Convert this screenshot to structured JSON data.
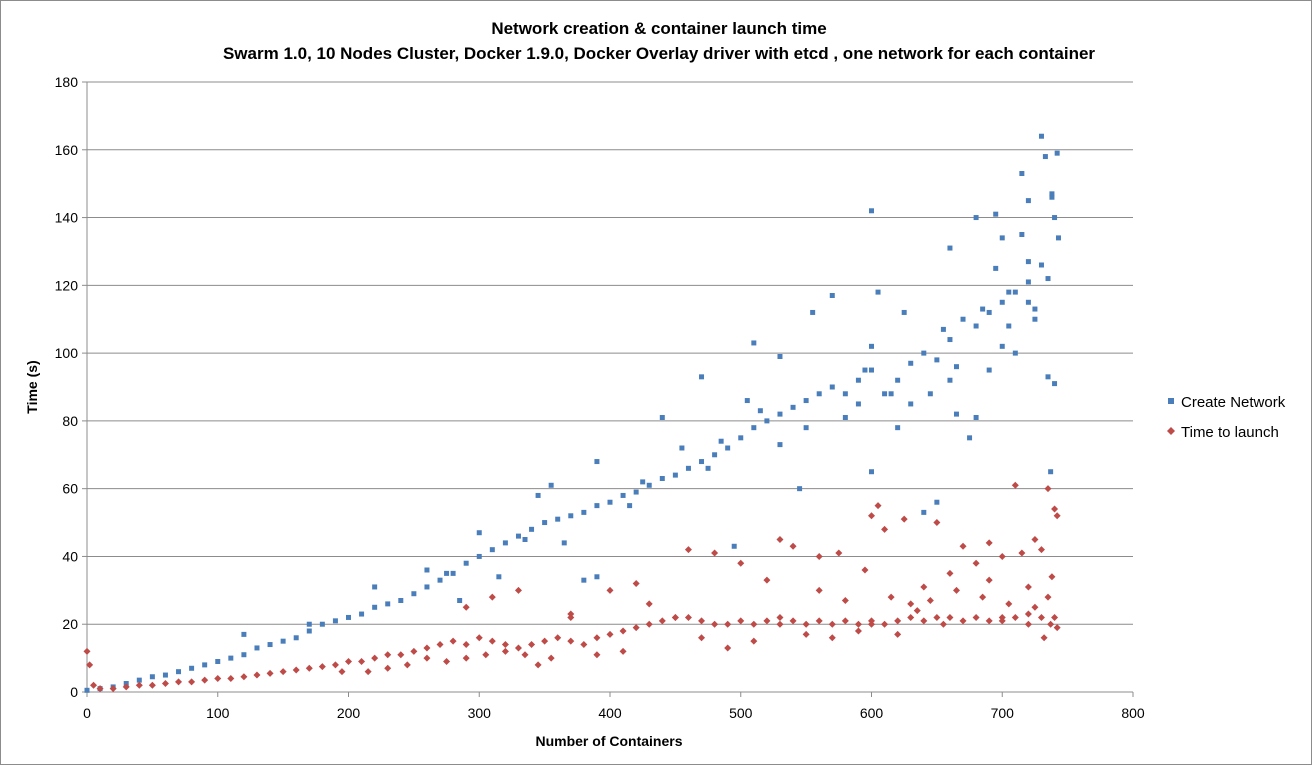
{
  "chart_data": {
    "type": "scatter",
    "title": "Network creation & container launch time",
    "subtitle": "Swarm 1.0, 10 Nodes Cluster, Docker 1.9.0, Docker Overlay driver with etcd , one network for each container",
    "xlabel": "Number of Containers",
    "ylabel": "Time (s)",
    "xlim": [
      0,
      800
    ],
    "ylim": [
      0,
      180
    ],
    "x_ticks": [
      0,
      100,
      200,
      300,
      400,
      500,
      600,
      700,
      800
    ],
    "y_ticks": [
      0,
      20,
      40,
      60,
      80,
      100,
      120,
      140,
      160,
      180
    ],
    "grid": "horizontal",
    "legend_position": "right",
    "series": [
      {
        "name": "Create Network",
        "marker": "square",
        "color": "#4a7ebb",
        "points": [
          [
            0,
            0.5
          ],
          [
            10,
            1
          ],
          [
            20,
            1.5
          ],
          [
            30,
            2.5
          ],
          [
            40,
            3.5
          ],
          [
            50,
            4.5
          ],
          [
            60,
            5
          ],
          [
            70,
            6
          ],
          [
            80,
            7
          ],
          [
            90,
            8
          ],
          [
            100,
            9
          ],
          [
            110,
            10
          ],
          [
            120,
            11
          ],
          [
            130,
            13
          ],
          [
            140,
            14
          ],
          [
            150,
            15
          ],
          [
            160,
            16
          ],
          [
            170,
            18
          ],
          [
            180,
            20
          ],
          [
            190,
            21
          ],
          [
            200,
            22
          ],
          [
            210,
            23
          ],
          [
            220,
            25
          ],
          [
            230,
            26
          ],
          [
            240,
            27
          ],
          [
            250,
            29
          ],
          [
            260,
            31
          ],
          [
            270,
            33
          ],
          [
            280,
            35
          ],
          [
            290,
            38
          ],
          [
            300,
            40
          ],
          [
            310,
            42
          ],
          [
            320,
            44
          ],
          [
            330,
            46
          ],
          [
            340,
            48
          ],
          [
            350,
            50
          ],
          [
            360,
            51
          ],
          [
            370,
            52
          ],
          [
            380,
            53
          ],
          [
            390,
            55
          ],
          [
            400,
            56
          ],
          [
            410,
            58
          ],
          [
            420,
            59
          ],
          [
            430,
            61
          ],
          [
            440,
            63
          ],
          [
            450,
            64
          ],
          [
            460,
            66
          ],
          [
            470,
            68
          ],
          [
            480,
            70
          ],
          [
            490,
            72
          ],
          [
            500,
            75
          ],
          [
            510,
            78
          ],
          [
            520,
            80
          ],
          [
            530,
            82
          ],
          [
            540,
            84
          ],
          [
            550,
            86
          ],
          [
            560,
            88
          ],
          [
            570,
            90
          ],
          [
            580,
            88
          ],
          [
            590,
            92
          ],
          [
            600,
            95
          ],
          [
            610,
            88
          ],
          [
            620,
            92
          ],
          [
            630,
            97
          ],
          [
            640,
            100
          ],
          [
            650,
            98
          ],
          [
            660,
            104
          ],
          [
            670,
            110
          ],
          [
            680,
            108
          ],
          [
            690,
            112
          ],
          [
            700,
            115
          ],
          [
            710,
            118
          ],
          [
            720,
            121
          ],
          [
            730,
            126
          ],
          [
            740,
            140
          ],
          [
            120,
            17
          ],
          [
            170,
            20
          ],
          [
            220,
            31
          ],
          [
            260,
            36
          ],
          [
            300,
            47
          ],
          [
            345,
            58
          ],
          [
            355,
            61
          ],
          [
            390,
            68
          ],
          [
            440,
            81
          ],
          [
            470,
            93
          ],
          [
            510,
            103
          ],
          [
            530,
            99
          ],
          [
            555,
            112
          ],
          [
            570,
            117
          ],
          [
            600,
            142
          ],
          [
            660,
            131
          ],
          [
            680,
            140
          ],
          [
            695,
            141
          ],
          [
            700,
            134
          ],
          [
            715,
            153
          ],
          [
            730,
            164
          ],
          [
            738,
            147
          ],
          [
            742,
            159
          ],
          [
            743,
            134
          ],
          [
            735,
            122
          ],
          [
            720,
            145
          ],
          [
            740,
            91
          ],
          [
            737,
            65
          ],
          [
            380,
            33
          ],
          [
            390,
            34
          ],
          [
            495,
            43
          ],
          [
            545,
            60
          ],
          [
            600,
            65
          ],
          [
            640,
            53
          ],
          [
            650,
            56
          ],
          [
            680,
            81
          ],
          [
            710,
            100
          ],
          [
            725,
            113
          ],
          [
            735,
            93
          ],
          [
            600,
            102
          ],
          [
            615,
            88
          ],
          [
            630,
            85
          ],
          [
            660,
            92
          ],
          [
            690,
            95
          ],
          [
            700,
            102
          ],
          [
            720,
            115
          ],
          [
            725,
            110
          ],
          [
            705,
            108
          ],
          [
            485,
            74
          ],
          [
            505,
            86
          ],
          [
            530,
            73
          ],
          [
            580,
            81
          ],
          [
            590,
            85
          ],
          [
            620,
            78
          ],
          [
            645,
            88
          ],
          [
            665,
            96
          ],
          [
            675,
            75
          ],
          [
            685,
            113
          ],
          [
            695,
            125
          ],
          [
            715,
            135
          ],
          [
            733,
            158
          ],
          [
            738,
            146
          ],
          [
            720,
            127
          ],
          [
            705,
            118
          ],
          [
            275,
            35
          ],
          [
            285,
            27
          ],
          [
            315,
            34
          ],
          [
            335,
            45
          ],
          [
            365,
            44
          ],
          [
            415,
            55
          ],
          [
            425,
            62
          ],
          [
            455,
            72
          ],
          [
            475,
            66
          ],
          [
            515,
            83
          ],
          [
            550,
            78
          ],
          [
            595,
            95
          ],
          [
            605,
            118
          ],
          [
            625,
            112
          ],
          [
            655,
            107
          ],
          [
            665,
            82
          ]
        ]
      },
      {
        "name": "Time to launch",
        "marker": "diamond",
        "color": "#be4b48",
        "points": [
          [
            0,
            12
          ],
          [
            2,
            8
          ],
          [
            5,
            2
          ],
          [
            10,
            1
          ],
          [
            20,
            1
          ],
          [
            30,
            1.5
          ],
          [
            40,
            2
          ],
          [
            50,
            2
          ],
          [
            60,
            2.5
          ],
          [
            70,
            3
          ],
          [
            80,
            3
          ],
          [
            90,
            3.5
          ],
          [
            100,
            4
          ],
          [
            110,
            4
          ],
          [
            120,
            4.5
          ],
          [
            130,
            5
          ],
          [
            140,
            5.5
          ],
          [
            150,
            6
          ],
          [
            160,
            6.5
          ],
          [
            170,
            7
          ],
          [
            180,
            7.5
          ],
          [
            190,
            8
          ],
          [
            200,
            9
          ],
          [
            210,
            9
          ],
          [
            220,
            10
          ],
          [
            230,
            11
          ],
          [
            240,
            11
          ],
          [
            250,
            12
          ],
          [
            260,
            13
          ],
          [
            270,
            14
          ],
          [
            280,
            15
          ],
          [
            290,
            14
          ],
          [
            300,
            16
          ],
          [
            310,
            15
          ],
          [
            320,
            14
          ],
          [
            330,
            13
          ],
          [
            340,
            14
          ],
          [
            350,
            15
          ],
          [
            360,
            16
          ],
          [
            370,
            15
          ],
          [
            380,
            14
          ],
          [
            390,
            16
          ],
          [
            400,
            17
          ],
          [
            410,
            18
          ],
          [
            420,
            19
          ],
          [
            430,
            20
          ],
          [
            440,
            21
          ],
          [
            450,
            22
          ],
          [
            460,
            22
          ],
          [
            470,
            21
          ],
          [
            480,
            20
          ],
          [
            490,
            20
          ],
          [
            500,
            21
          ],
          [
            510,
            20
          ],
          [
            520,
            21
          ],
          [
            530,
            22
          ],
          [
            540,
            21
          ],
          [
            550,
            20
          ],
          [
            560,
            21
          ],
          [
            570,
            20
          ],
          [
            580,
            21
          ],
          [
            590,
            20
          ],
          [
            600,
            21
          ],
          [
            610,
            20
          ],
          [
            620,
            21
          ],
          [
            630,
            22
          ],
          [
            640,
            21
          ],
          [
            650,
            22
          ],
          [
            660,
            22
          ],
          [
            670,
            21
          ],
          [
            680,
            22
          ],
          [
            690,
            21
          ],
          [
            700,
            22
          ],
          [
            710,
            22
          ],
          [
            720,
            23
          ],
          [
            730,
            22
          ],
          [
            740,
            22
          ],
          [
            290,
            25
          ],
          [
            310,
            28
          ],
          [
            330,
            30
          ],
          [
            370,
            23
          ],
          [
            400,
            30
          ],
          [
            420,
            32
          ],
          [
            460,
            42
          ],
          [
            480,
            41
          ],
          [
            500,
            38
          ],
          [
            520,
            33
          ],
          [
            530,
            45
          ],
          [
            540,
            43
          ],
          [
            560,
            40
          ],
          [
            575,
            41
          ],
          [
            600,
            52
          ],
          [
            605,
            55
          ],
          [
            610,
            48
          ],
          [
            625,
            51
          ],
          [
            640,
            31
          ],
          [
            650,
            50
          ],
          [
            660,
            35
          ],
          [
            670,
            43
          ],
          [
            680,
            38
          ],
          [
            690,
            44
          ],
          [
            700,
            40
          ],
          [
            710,
            61
          ],
          [
            715,
            41
          ],
          [
            720,
            31
          ],
          [
            725,
            45
          ],
          [
            730,
            42
          ],
          [
            735,
            60
          ],
          [
            740,
            54
          ],
          [
            742,
            52
          ],
          [
            738,
            34
          ],
          [
            732,
            16
          ],
          [
            737,
            20
          ],
          [
            742,
            19
          ],
          [
            720,
            20
          ],
          [
            700,
            21
          ],
          [
            690,
            33
          ],
          [
            655,
            20
          ],
          [
            645,
            27
          ],
          [
            635,
            24
          ],
          [
            620,
            17
          ],
          [
            600,
            20
          ],
          [
            590,
            18
          ],
          [
            570,
            16
          ],
          [
            550,
            17
          ],
          [
            530,
            20
          ],
          [
            510,
            15
          ],
          [
            490,
            13
          ],
          [
            470,
            16
          ],
          [
            450,
            22
          ],
          [
            430,
            26
          ],
          [
            410,
            12
          ],
          [
            390,
            11
          ],
          [
            370,
            22
          ],
          [
            355,
            10
          ],
          [
            345,
            8
          ],
          [
            335,
            11
          ],
          [
            320,
            12
          ],
          [
            305,
            11
          ],
          [
            290,
            10
          ],
          [
            275,
            9
          ],
          [
            260,
            10
          ],
          [
            245,
            8
          ],
          [
            230,
            7
          ],
          [
            215,
            6
          ],
          [
            195,
            6
          ],
          [
            560,
            30
          ],
          [
            580,
            27
          ],
          [
            595,
            36
          ],
          [
            615,
            28
          ],
          [
            630,
            26
          ],
          [
            665,
            30
          ],
          [
            685,
            28
          ],
          [
            705,
            26
          ],
          [
            725,
            25
          ],
          [
            735,
            28
          ]
        ]
      }
    ]
  }
}
